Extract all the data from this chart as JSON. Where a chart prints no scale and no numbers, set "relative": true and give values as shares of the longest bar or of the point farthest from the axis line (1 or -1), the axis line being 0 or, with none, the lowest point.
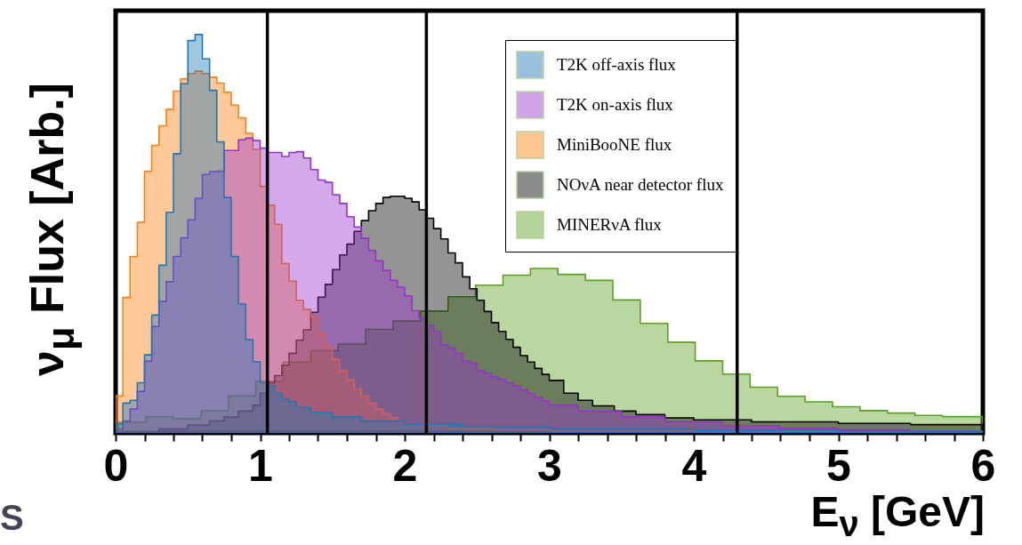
{
  "chart_data": {
    "type": "area",
    "relative": true,
    "xlabel": "E$_{ν}$ [GeV]",
    "ylabel": "ν$_{μ}$ Flux [Arb.]",
    "annotations": [
      "S"
    ],
    "xlim": [
      0,
      6
    ],
    "xticks": [
      0,
      {
        "value": 0.2,
        "label": null
      },
      {
        "value": 0.4,
        "label": null
      },
      {
        "value": 0.6,
        "label": null
      },
      {
        "value": 0.8,
        "label": null
      },
      1,
      {
        "value": 1.2,
        "label": null
      },
      {
        "value": 1.4,
        "label": null
      },
      {
        "value": 1.6,
        "label": null
      },
      {
        "value": 1.8,
        "label": null
      },
      2,
      {
        "value": 2.2,
        "label": null
      },
      {
        "value": 2.4,
        "label": null
      },
      {
        "value": 2.6,
        "label": null
      },
      {
        "value": 2.8,
        "label": null
      },
      3,
      {
        "value": 3.2,
        "label": null
      },
      {
        "value": 3.4,
        "label": null
      },
      {
        "value": 3.6,
        "label": null
      },
      {
        "value": 3.8,
        "label": null
      },
      4,
      {
        "value": 4.2,
        "label": null
      },
      {
        "value": 4.4,
        "label": null
      },
      {
        "value": 4.6,
        "label": null
      },
      {
        "value": 4.8,
        "label": null
      },
      5,
      {
        "value": 5.2,
        "label": null
      },
      {
        "value": 5.4,
        "label": null
      },
      {
        "value": 5.6,
        "label": null
      },
      {
        "value": 5.8,
        "label": null
      },
      6
    ],
    "tick_labels": "x",
    "legend": "top right",
    "ref_lines": [
      {
        "axis": "x",
        "value": 1.05,
        "color": "#000000"
      },
      {
        "axis": "x",
        "value": 2.15,
        "color": "#000000"
      },
      {
        "axis": "x",
        "value": 4.3,
        "color": "#000000"
      }
    ],
    "series": [
      {
        "name": "T2K off-axis flux",
        "color": "#1f77b4",
        "x": [
          0,
          0.05,
          0.1,
          0.15,
          0.2,
          0.25,
          0.3,
          0.35,
          0.4,
          0.45,
          0.5,
          0.55,
          0.6,
          0.65,
          0.7,
          0.75,
          0.8,
          0.85,
          0.9,
          0.95,
          1.0,
          1.05,
          1.1,
          1.15,
          1.2,
          1.25,
          1.35,
          1.5,
          1.7,
          2.0,
          2.4,
          3.0,
          4.0,
          5.0,
          6
        ],
        "values": [
          0.023,
          0.075,
          0.082,
          0.126,
          0.196,
          0.296,
          0.421,
          0.554,
          0.701,
          0.877,
          0.985,
          1.0,
          0.939,
          0.86,
          0.731,
          0.591,
          0.443,
          0.324,
          0.235,
          0.179,
          0.126,
          0.119,
          0.1,
          0.086,
          0.078,
          0.064,
          0.052,
          0.04,
          0.03,
          0.022,
          0.015,
          0.01,
          0.006,
          0.004,
          0.004
        ]
      },
      {
        "name": "T2K on-axis flux",
        "color": "#9932cc",
        "x": [
          0,
          0.05,
          0.1,
          0.15,
          0.2,
          0.25,
          0.3,
          0.35,
          0.4,
          0.45,
          0.5,
          0.55,
          0.6,
          0.65,
          0.7,
          0.75,
          0.8,
          0.85,
          0.9,
          0.95,
          1.0,
          1.05,
          1.1,
          1.15,
          1.2,
          1.25,
          1.3,
          1.35,
          1.4,
          1.45,
          1.5,
          1.55,
          1.6,
          1.65,
          1.7,
          1.75,
          1.8,
          1.85,
          1.9,
          1.95,
          2.0,
          2.05,
          2.1,
          2.15,
          2.2,
          2.25,
          2.3,
          2.35,
          2.4,
          2.45,
          2.5,
          2.55,
          2.6,
          2.65,
          2.7,
          2.75,
          2.8,
          2.85,
          2.9,
          2.95,
          3.0,
          3.2,
          3.5,
          3.8,
          4.2,
          4.6,
          5.0,
          5.5,
          6
        ],
        "values": [
          0.01,
          0.03,
          0.06,
          0.104,
          0.18,
          0.267,
          0.33,
          0.38,
          0.443,
          0.49,
          0.535,
          0.589,
          0.649,
          0.656,
          0.657,
          0.709,
          0.709,
          0.736,
          0.74,
          0.734,
          0.715,
          0.704,
          0.704,
          0.694,
          0.704,
          0.706,
          0.69,
          0.661,
          0.635,
          0.629,
          0.598,
          0.576,
          0.543,
          0.517,
          0.489,
          0.458,
          0.432,
          0.408,
          0.383,
          0.366,
          0.344,
          0.307,
          0.288,
          0.27,
          0.255,
          0.222,
          0.213,
          0.2,
          0.181,
          0.175,
          0.156,
          0.15,
          0.141,
          0.135,
          0.126,
          0.118,
          0.108,
          0.1,
          0.089,
          0.08,
          0.07,
          0.055,
          0.04,
          0.028,
          0.018,
          0.012,
          0.008,
          0.005,
          0.005
        ]
      },
      {
        "name": "MiniBooNE flux",
        "color": "#ff7f0e",
        "x": [
          0,
          0.05,
          0.1,
          0.15,
          0.2,
          0.25,
          0.3,
          0.35,
          0.4,
          0.45,
          0.5,
          0.55,
          0.6,
          0.65,
          0.7,
          0.75,
          0.8,
          0.85,
          0.9,
          0.95,
          1.0,
          1.05,
          1.1,
          1.15,
          1.2,
          1.25,
          1.3,
          1.35,
          1.4,
          1.45,
          1.5,
          1.55,
          1.6,
          1.65,
          1.7,
          1.75,
          1.8,
          1.85,
          1.9,
          1.95,
          2.0,
          2.1,
          2.3,
          2.6,
          3.0,
          4.0,
          6
        ],
        "values": [
          0.093,
          0.34,
          0.443,
          0.529,
          0.657,
          0.722,
          0.771,
          0.812,
          0.858,
          0.889,
          0.902,
          0.908,
          0.902,
          0.893,
          0.878,
          0.855,
          0.823,
          0.791,
          0.752,
          0.712,
          0.619,
          0.572,
          0.524,
          0.425,
          0.381,
          0.333,
          0.31,
          0.292,
          0.252,
          0.218,
          0.185,
          0.156,
          0.133,
          0.111,
          0.093,
          0.075,
          0.06,
          0.049,
          0.038,
          0.03,
          0.023,
          0.018,
          0.012,
          0.008,
          0.005,
          0.003,
          0.003
        ]
      },
      {
        "name": "NOνA near detector flux",
        "color": "#000000",
        "x": [
          0.3,
          0.5,
          0.65,
          0.75,
          0.85,
          0.95,
          1.0,
          1.05,
          1.1,
          1.15,
          1.2,
          1.25,
          1.3,
          1.35,
          1.4,
          1.45,
          1.5,
          1.55,
          1.6,
          1.65,
          1.7,
          1.75,
          1.8,
          1.85,
          1.9,
          1.95,
          2.0,
          2.05,
          2.1,
          2.15,
          2.2,
          2.25,
          2.3,
          2.35,
          2.4,
          2.45,
          2.5,
          2.55,
          2.6,
          2.65,
          2.7,
          2.75,
          2.8,
          2.85,
          2.9,
          2.95,
          3.0,
          3.1,
          3.2,
          3.3,
          3.45,
          3.6,
          3.8,
          4.0,
          4.4,
          5.0,
          5.5,
          6
        ],
        "values": [
          0.01,
          0.02,
          0.03,
          0.04,
          0.055,
          0.07,
          0.1,
          0.126,
          0.144,
          0.17,
          0.2,
          0.233,
          0.259,
          0.303,
          0.341,
          0.373,
          0.41,
          0.447,
          0.474,
          0.506,
          0.533,
          0.558,
          0.576,
          0.591,
          0.594,
          0.594,
          0.589,
          0.58,
          0.56,
          0.539,
          0.513,
          0.487,
          0.452,
          0.427,
          0.392,
          0.362,
          0.333,
          0.305,
          0.277,
          0.255,
          0.235,
          0.215,
          0.194,
          0.178,
          0.162,
          0.147,
          0.132,
          0.1,
          0.082,
          0.068,
          0.055,
          0.046,
          0.038,
          0.033,
          0.028,
          0.024,
          0.021,
          0.021
        ]
      },
      {
        "name": "MINERνA flux",
        "color": "#5aa01e",
        "x": [
          0.02,
          0.21,
          0.4,
          0.59,
          0.78,
          0.97,
          1.16,
          1.35,
          1.54,
          1.73,
          1.92,
          2.11,
          2.3,
          2.49,
          2.68,
          2.87,
          3.06,
          3.25,
          3.44,
          3.63,
          3.82,
          4.01,
          4.2,
          4.39,
          4.58,
          4.77,
          4.96,
          5.15,
          5.34,
          5.53,
          5.72,
          5.91,
          6
        ],
        "values": [
          0.027,
          0.041,
          0.036,
          0.056,
          0.093,
          0.13,
          0.178,
          0.207,
          0.223,
          0.26,
          0.281,
          0.306,
          0.342,
          0.371,
          0.396,
          0.413,
          0.398,
          0.383,
          0.334,
          0.275,
          0.228,
          0.181,
          0.148,
          0.115,
          0.092,
          0.078,
          0.066,
          0.056,
          0.05,
          0.044,
          0.041,
          0.041,
          0.041
        ]
      }
    ]
  }
}
